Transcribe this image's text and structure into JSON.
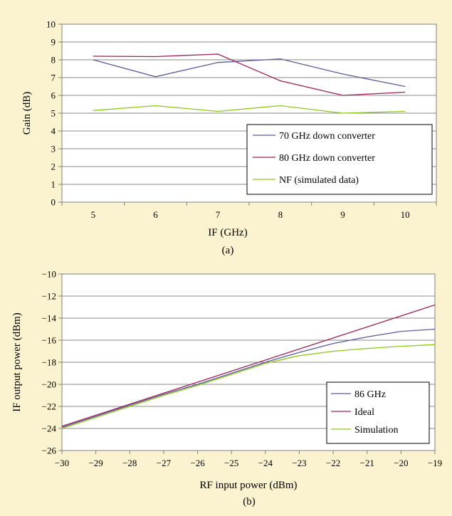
{
  "chart_data": [
    {
      "type": "line",
      "panel_label": "(a)",
      "xlabel": "IF (GHz)",
      "ylabel": "Gain (dB)",
      "categories": [
        5,
        6,
        7,
        8,
        9,
        10
      ],
      "x_tick_labels": [
        "5",
        "6",
        "7",
        "8",
        "9",
        "10"
      ],
      "y_tick_labels": [
        "0",
        "1",
        "2",
        "3",
        "4",
        "5",
        "6",
        "7",
        "8",
        "9",
        "10"
      ],
      "ylim": [
        0,
        10
      ],
      "grid": "horizontal",
      "legend_position": "bottom-right",
      "series": [
        {
          "name": "70 GHz down converter",
          "color": "#5a5aa0",
          "values": [
            8.0,
            7.05,
            7.85,
            8.05,
            7.2,
            6.5
          ]
        },
        {
          "name": "80 GHz down converter",
          "color": "#a0205a",
          "values": [
            8.2,
            8.18,
            8.32,
            6.82,
            6.0,
            6.18
          ]
        },
        {
          "name": "NF (simulated data)",
          "color": "#8ccb14",
          "values": [
            5.15,
            5.42,
            5.1,
            5.42,
            5.0,
            5.1
          ]
        }
      ]
    },
    {
      "type": "line",
      "panel_label": "(b)",
      "xlabel": "RF input power (dBm)",
      "ylabel": "IF output power (dBm)",
      "xlim": [
        -30,
        -19
      ],
      "ylim": [
        -26,
        -10
      ],
      "x_tick_labels": [
        "−30",
        "−29",
        "−28",
        "−27",
        "−26",
        "−25",
        "−24",
        "−23",
        "−22",
        "−21",
        "−20",
        "−19"
      ],
      "y_tick_labels": [
        "−26",
        "−24",
        "−22",
        "−20",
        "−18",
        "−16",
        "−14",
        "−12",
        "−10"
      ],
      "grid": "horizontal",
      "legend_position": "bottom-right",
      "series": [
        {
          "name": "86 GHz",
          "color": "#5a5aa0",
          "x": [
            -30,
            -29,
            -28,
            -27,
            -26,
            -25,
            -24,
            -23,
            -22,
            -21,
            -20,
            -19
          ],
          "y": [
            -23.9,
            -22.9,
            -21.9,
            -20.9,
            -20.0,
            -19.0,
            -18.0,
            -17.1,
            -16.3,
            -15.7,
            -15.2,
            -15.0
          ]
        },
        {
          "name": "Ideal",
          "color": "#a0205a",
          "x": [
            -30,
            -19
          ],
          "y": [
            -23.8,
            -12.8
          ]
        },
        {
          "name": "Simulation",
          "color": "#8ccb14",
          "x": [
            -30,
            -29,
            -28,
            -27,
            -26,
            -25,
            -24,
            -23,
            -22,
            -21,
            -20,
            -19
          ],
          "y": [
            -24.0,
            -23.0,
            -22.0,
            -21.0,
            -20.1,
            -19.1,
            -18.1,
            -17.4,
            -17.0,
            -16.75,
            -16.55,
            -16.4
          ]
        }
      ]
    }
  ]
}
